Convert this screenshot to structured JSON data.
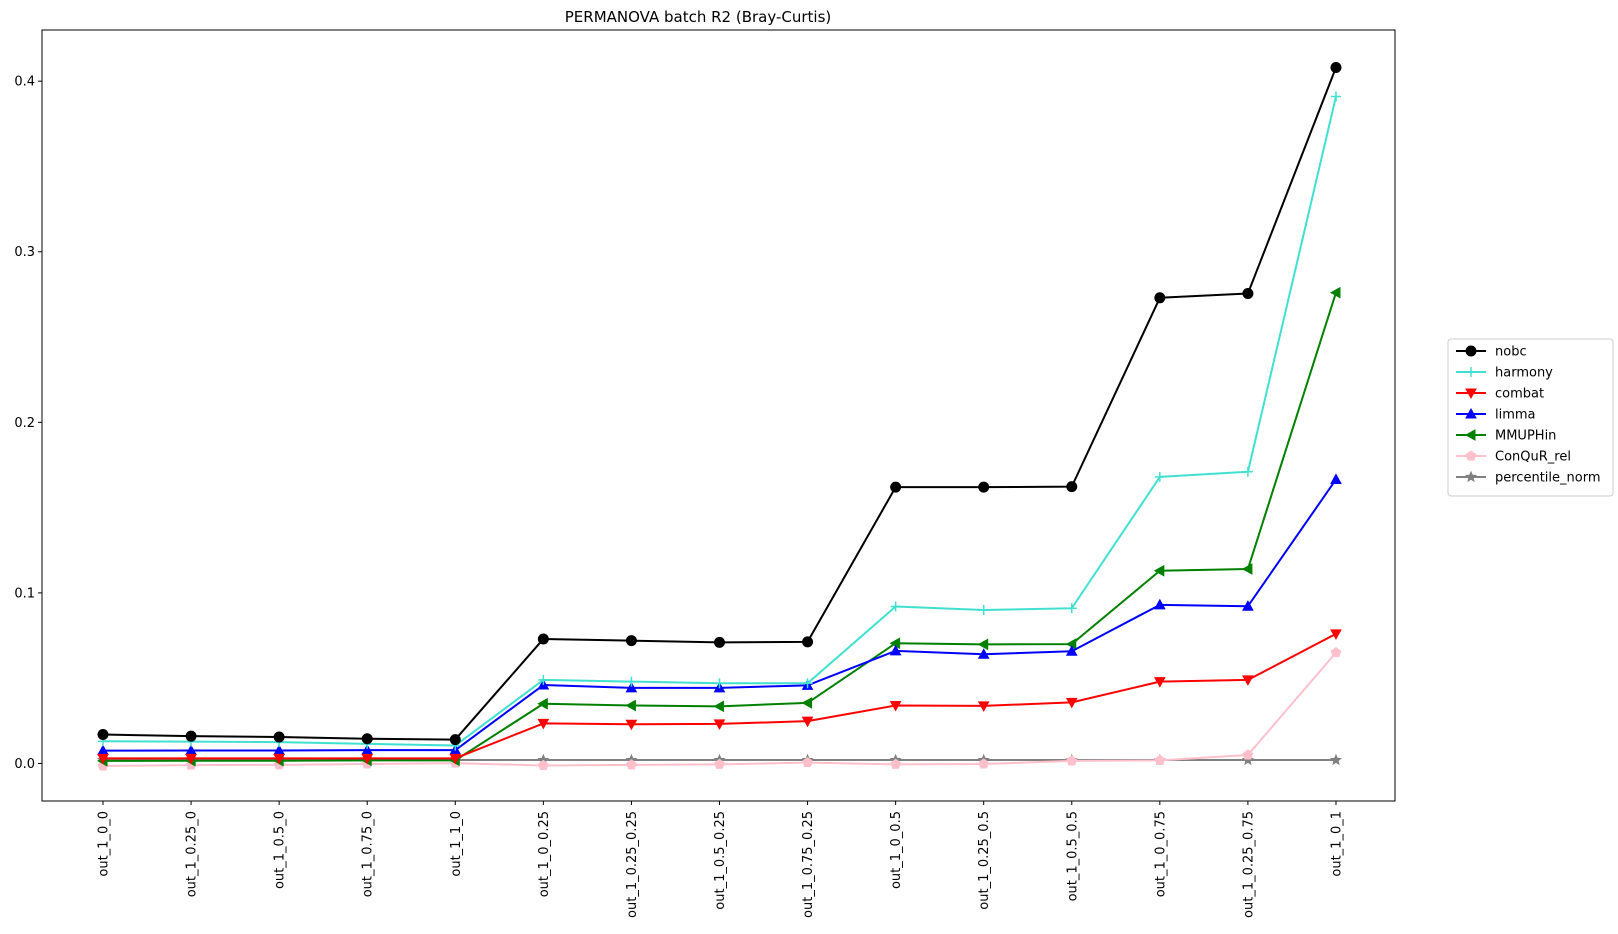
{
  "chart_data": {
    "type": "line",
    "title": "PERMANOVA batch R2 (Bray-Curtis)",
    "xlabel": "",
    "ylabel": "",
    "ylim": [
      -0.022,
      0.43
    ],
    "yticks": [
      "0.0",
      "0.1",
      "0.2",
      "0.3",
      "0.4"
    ],
    "grid": false,
    "legend_position": "right",
    "categories": [
      "out_1_0_0",
      "out_1_0.25_0",
      "out_1_0.5_0",
      "out_1_0.75_0",
      "out_1_1_0",
      "out_1_0_0.25",
      "out_1_0.25_0.25",
      "out_1_0.5_0.25",
      "out_1_0.75_0.25",
      "out_1_0_0.5",
      "out_1_0.25_0.5",
      "out_1_0.5_0.5",
      "out_1_0_0.75",
      "out_1_0.25_0.75",
      "out_1_0_1"
    ],
    "series": [
      {
        "name": "nobc",
        "color": "#000000",
        "marker": "circle",
        "values": [
          0.017,
          0.016,
          0.0155,
          0.0145,
          0.014,
          0.073,
          0.072,
          0.071,
          0.0713,
          0.162,
          0.162,
          0.1623,
          0.273,
          0.2755,
          0.408
        ]
      },
      {
        "name": "harmony",
        "color": "#40e0d0",
        "marker": "plus",
        "values": [
          0.013,
          0.0128,
          0.0125,
          0.0115,
          0.0105,
          0.049,
          0.048,
          0.047,
          0.047,
          0.092,
          0.09,
          0.091,
          0.168,
          0.171,
          0.391
        ]
      },
      {
        "name": "combat",
        "color": "#ff0000",
        "marker": "triangle-down",
        "values": [
          0.003,
          0.003,
          0.003,
          0.003,
          0.003,
          0.0235,
          0.023,
          0.0232,
          0.0248,
          0.034,
          0.0338,
          0.0358,
          0.048,
          0.049,
          0.076
        ]
      },
      {
        "name": "limma",
        "color": "#0000ff",
        "marker": "triangle-up",
        "values": [
          0.0075,
          0.0076,
          0.0076,
          0.0078,
          0.0078,
          0.046,
          0.0443,
          0.0443,
          0.0458,
          0.066,
          0.064,
          0.0658,
          0.093,
          0.0922,
          0.1665
        ]
      },
      {
        "name": "MMUPHin",
        "color": "#008000",
        "marker": "triangle-left",
        "values": [
          0.0015,
          0.0016,
          0.0016,
          0.0018,
          0.0018,
          0.035,
          0.034,
          0.0335,
          0.0355,
          0.0705,
          0.0698,
          0.07,
          0.113,
          0.114,
          0.276
        ]
      },
      {
        "name": "ConQuR_rel",
        "color": "#ffc0cb",
        "marker": "pentagon",
        "values": [
          -0.0015,
          -0.001,
          -0.0008,
          -0.0003,
          0.0002,
          -0.0012,
          -0.0008,
          -0.0005,
          0.0005,
          -0.0005,
          -0.0003,
          0.0015,
          0.0018,
          0.005,
          0.065
        ]
      },
      {
        "name": "percentile_norm",
        "color": "#808080",
        "marker": "star",
        "values": [
          0.002,
          0.002,
          0.002,
          0.002,
          0.002,
          0.002,
          0.002,
          0.002,
          0.002,
          0.002,
          0.002,
          0.002,
          0.002,
          0.002,
          0.002
        ]
      }
    ]
  }
}
